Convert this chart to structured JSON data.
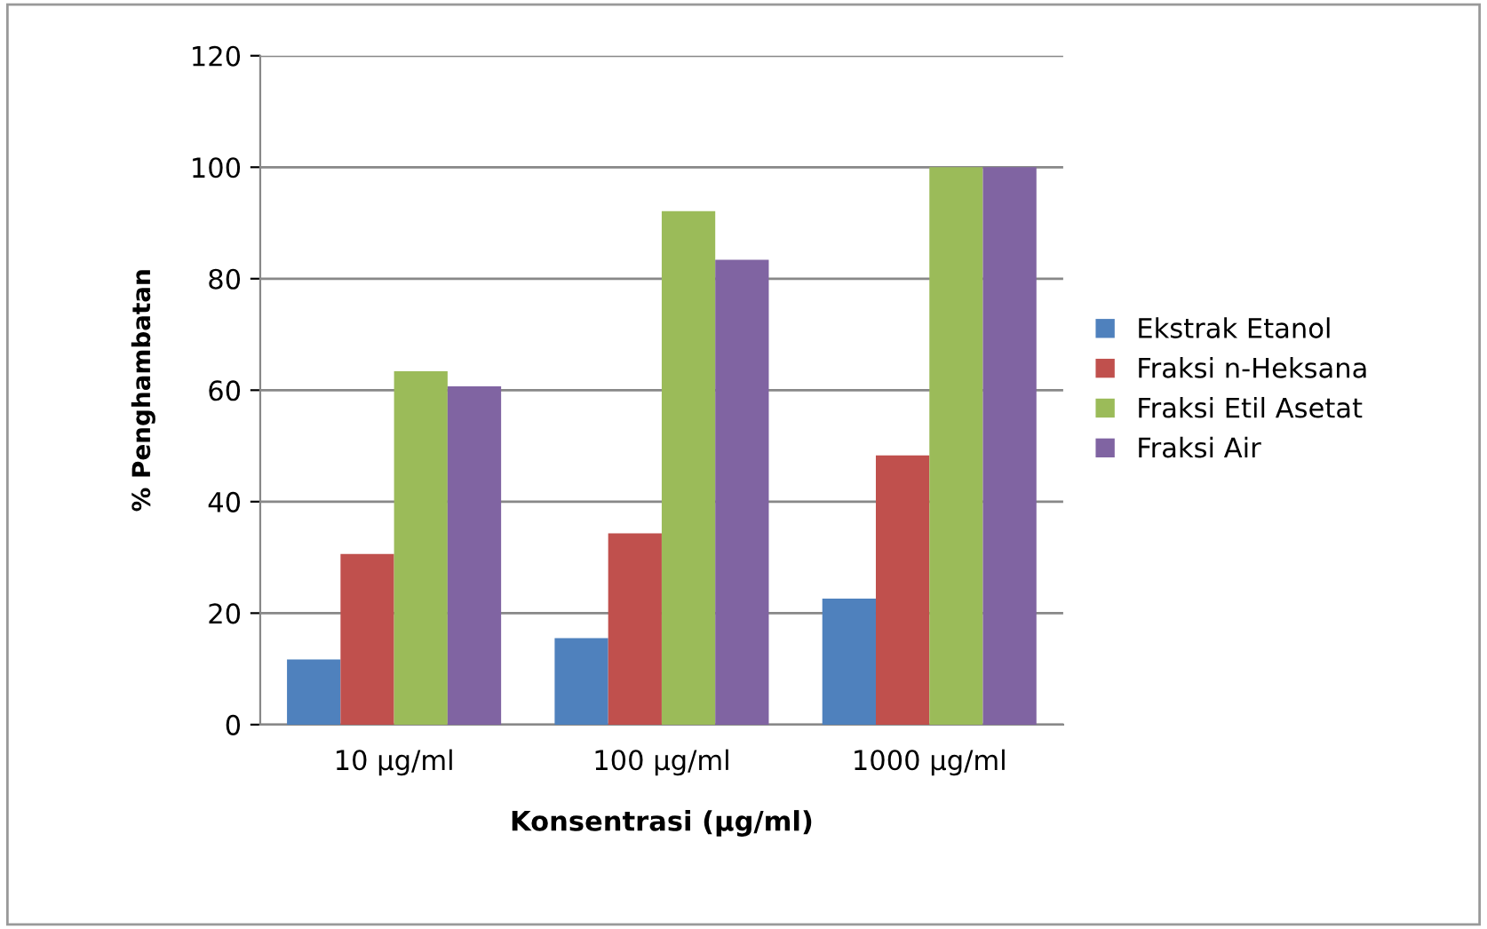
{
  "chart_data": {
    "type": "bar",
    "xlabel": "Konsentrasi (µg/ml)",
    "ylabel": "% Penghambatan",
    "categories": [
      "10 µg/ml",
      "100 µg/ml",
      "1000 µg/ml"
    ],
    "series": [
      {
        "name": "Ekstrak Etanol",
        "color": "#4f81bd",
        "values": [
          11.7,
          15.5,
          22.6
        ]
      },
      {
        "name": "Fraksi n-Heksana",
        "color": "#c0504d",
        "values": [
          30.6,
          34.3,
          48.3
        ]
      },
      {
        "name": "Fraksi Etil Asetat",
        "color": "#9bbb59",
        "values": [
          63.4,
          92.1,
          100
        ]
      },
      {
        "name": "Fraksi Air",
        "color": "#8064a2",
        "values": [
          60.7,
          83.4,
          100
        ]
      }
    ],
    "ylim": [
      0,
      120
    ],
    "yticks": [
      0,
      20,
      40,
      60,
      80,
      100,
      120
    ],
    "grid": "y",
    "legend": "right"
  }
}
